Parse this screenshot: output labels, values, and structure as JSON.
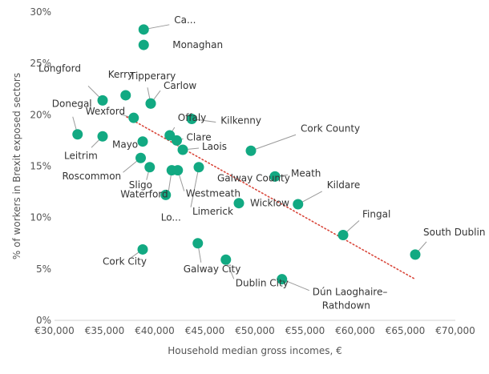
{
  "chart_data": {
    "type": "scatter",
    "xlabel": "Household median gross incomes, €",
    "ylabel": "% of workers in Brexit exposed sectors",
    "xlim": [
      30000,
      70000
    ],
    "ylim": [
      0,
      30
    ],
    "x_ticks": [
      "€30,000",
      "€35,000",
      "€40,000",
      "€45,000",
      "€50,000",
      "€55,000",
      "€60,000",
      "€65,000",
      "€70,000"
    ],
    "y_ticks": [
      "0%",
      "5%",
      "10%",
      "15%",
      "20%",
      "25%",
      "30%"
    ],
    "gridlines": false,
    "trendline": {
      "style": "dotted",
      "color": "#d9463a",
      "from": [
        37200,
        19.8
      ],
      "to": [
        66000,
        4.0
      ]
    },
    "point_color": "#12a982",
    "points": [
      {
        "label": "Ca...",
        "x": 38900,
        "y": 28.3
      },
      {
        "label": "Monaghan",
        "x": 38900,
        "y": 26.8
      },
      {
        "label": "Longford",
        "x": 34800,
        "y": 21.4
      },
      {
        "label": "Kerry",
        "x": 37100,
        "y": 21.9
      },
      {
        "label": "Tipperary",
        "x": 39600,
        "y": 21.1
      },
      {
        "label": "Carlow",
        "x": 39600,
        "y": 21.1
      },
      {
        "label": "Donegal",
        "x": 32300,
        "y": 18.1
      },
      {
        "label": "Wexford",
        "x": 37900,
        "y": 19.7
      },
      {
        "label": "Offaly",
        "x": 41500,
        "y": 18.0
      },
      {
        "label": "Kilkenny",
        "x": 43700,
        "y": 19.6
      },
      {
        "label": "Leitrim",
        "x": 34800,
        "y": 17.9
      },
      {
        "label": "Mayo",
        "x": 38800,
        "y": 17.4
      },
      {
        "label": "Clare",
        "x": 42200,
        "y": 17.5
      },
      {
        "label": "Laois",
        "x": 42800,
        "y": 16.6
      },
      {
        "label": "Cork County",
        "x": 49600,
        "y": 16.5
      },
      {
        "label": "Roscommon",
        "x": 38600,
        "y": 15.8
      },
      {
        "label": "Sligo",
        "x": 39500,
        "y": 14.9
      },
      {
        "label": "Galway County",
        "x": 52000,
        "y": 14.0
      },
      {
        "label": "Meath",
        "x": 52000,
        "y": 14.0
      },
      {
        "label": "Waterford",
        "x": 41700,
        "y": 14.6
      },
      {
        "label": "Westmeath",
        "x": 42300,
        "y": 14.6
      },
      {
        "label": "Limerick",
        "x": 44400,
        "y": 14.9
      },
      {
        "label": "Kildare",
        "x": 54300,
        "y": 11.3
      },
      {
        "label": "Wicklow",
        "x": 48400,
        "y": 11.4
      },
      {
        "label": "Lo...",
        "x": 41100,
        "y": 12.2
      },
      {
        "label": "Fingal",
        "x": 58800,
        "y": 8.3
      },
      {
        "label": "South Dublin",
        "x": 66000,
        "y": 6.4
      },
      {
        "label": "Cork City",
        "x": 38800,
        "y": 6.9
      },
      {
        "label": "Galway City",
        "x": 44300,
        "y": 7.5
      },
      {
        "label": "Dublin City",
        "x": 47100,
        "y": 5.9
      },
      {
        "label": "Dún Laoghaire–\nRathdown",
        "x": 52700,
        "y": 4.0
      }
    ]
  }
}
